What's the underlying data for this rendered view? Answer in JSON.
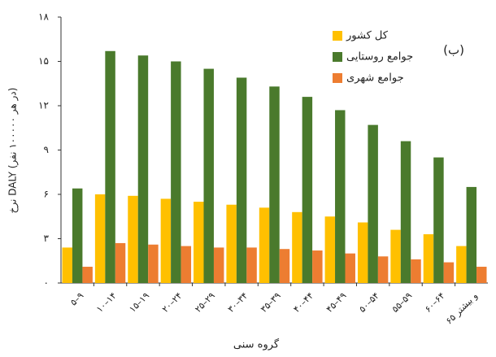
{
  "chart_data": {
    "type": "bar",
    "x_label": "گروه سنی",
    "y_label": "نرخ DALY (در هر ۱۰۰۰۰۰ نفر)",
    "annotation": "(ب)",
    "categories": [
      "۵–۹",
      "۱۰–۱۴",
      "۱۵–۱۹",
      "۲۰–۲۴",
      "۲۵–۲۹",
      "۳۰–۳۴",
      "۳۵–۳۹",
      "۴۰–۴۴",
      "۴۵–۴۹",
      "۵۰–۵۴",
      "۵۵–۵۹",
      "۶۰–۶۴",
      "۶۵ و بیشتر"
    ],
    "series": [
      {
        "name": "کل کشور",
        "color": "#ffc000",
        "values": [
          2.4,
          6.0,
          5.9,
          5.7,
          5.5,
          5.3,
          5.1,
          4.8,
          4.5,
          4.1,
          3.6,
          3.3,
          2.5
        ]
      },
      {
        "name": "جوامع روستایی",
        "color": "#4a7a2c",
        "values": [
          6.4,
          15.7,
          15.4,
          15.0,
          14.5,
          13.9,
          13.3,
          12.6,
          11.7,
          10.7,
          9.6,
          8.5,
          6.5
        ]
      },
      {
        "name": "جوامع شهری",
        "color": "#ed7d31",
        "values": [
          1.1,
          2.7,
          2.6,
          2.5,
          2.4,
          2.4,
          2.3,
          2.2,
          2.0,
          1.8,
          1.6,
          1.4,
          1.1
        ]
      }
    ],
    "ylim": [
      0,
      18
    ],
    "yticks": [
      {
        "value": 0,
        "label": "۰"
      },
      {
        "value": 3,
        "label": "۳"
      },
      {
        "value": 6,
        "label": "۶"
      },
      {
        "value": 9,
        "label": "۹"
      },
      {
        "value": 12,
        "label": "۱۲"
      },
      {
        "value": 15,
        "label": "۱۵"
      },
      {
        "value": 18,
        "label": "۱۸"
      }
    ],
    "grid": false
  }
}
